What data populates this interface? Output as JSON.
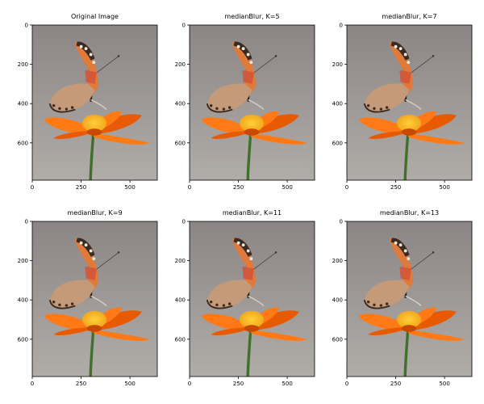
{
  "figure": {
    "panels": [
      {
        "title": "Original Image",
        "blur": 0
      },
      {
        "title": "medianBlur, K=5",
        "blur": 0.5
      },
      {
        "title": "medianBlur, K=7",
        "blur": 0.7
      },
      {
        "title": "medianBlur, K=9",
        "blur": 0.9
      },
      {
        "title": "medianBlur, K=11",
        "blur": 1.1
      },
      {
        "title": "medianBlur, K=13",
        "blur": 1.3
      }
    ],
    "x_ticks": [
      {
        "value": 0,
        "label": "0"
      },
      {
        "value": 250,
        "label": "250"
      },
      {
        "value": 500,
        "label": "500"
      }
    ],
    "y_ticks": [
      {
        "value": 0,
        "label": "0"
      },
      {
        "value": 200,
        "label": "200"
      },
      {
        "value": 400,
        "label": "400"
      },
      {
        "value": 600,
        "label": "600"
      }
    ],
    "x_range": [
      0,
      640
    ],
    "y_range": [
      0,
      790
    ],
    "colors": {
      "background_top": "#8b8685",
      "background_bottom": "#b0aca8",
      "petal": "#ff7a12",
      "petal_dark": "#e85a05",
      "center": "#f2a81e",
      "stem": "#3f6f2a",
      "wing_orange": "#e07a3a",
      "wing_dark": "#3a2a22",
      "wing_light": "#efe6da"
    }
  }
}
